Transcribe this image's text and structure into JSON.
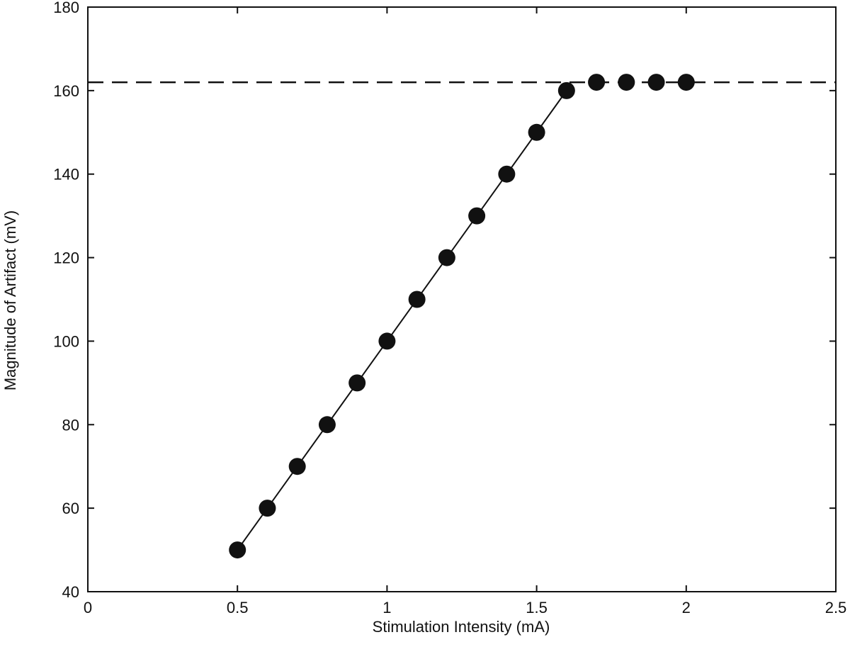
{
  "chart_data": {
    "type": "scatter",
    "title": "",
    "xlabel": "Stimulation Intensity (mA)",
    "ylabel": "Magnitude of Artifact (mV)",
    "xlim": [
      0,
      2.5
    ],
    "ylim": [
      40,
      180
    ],
    "xticks": [
      0,
      0.5,
      1,
      1.5,
      2,
      2.5
    ],
    "xtick_labels": [
      "0",
      "0.5",
      "1",
      "1.5",
      "2",
      "2.5"
    ],
    "yticks": [
      40,
      60,
      80,
      100,
      120,
      140,
      160,
      180
    ],
    "ytick_labels": [
      "40",
      "60",
      "80",
      "100",
      "120",
      "140",
      "160",
      "180"
    ],
    "grid": false,
    "legend": "none",
    "series": [
      {
        "marker": "circle",
        "color": "#111111",
        "x": [
          0.5,
          0.6,
          0.7,
          0.8,
          0.9,
          1.0,
          1.1,
          1.2,
          1.3,
          1.4,
          1.5,
          1.6,
          1.7,
          1.8,
          1.9,
          2.0
        ],
        "y": [
          50,
          60,
          70,
          80,
          90,
          100,
          110,
          120,
          130,
          140,
          150,
          160,
          162,
          162,
          162,
          162
        ]
      }
    ],
    "fit_line": {
      "color": "#111111",
      "x": [
        0.5,
        1.6
      ],
      "y": [
        50,
        160
      ]
    },
    "reference_line": {
      "style": "dashed",
      "color": "#111111",
      "y": 162
    }
  }
}
